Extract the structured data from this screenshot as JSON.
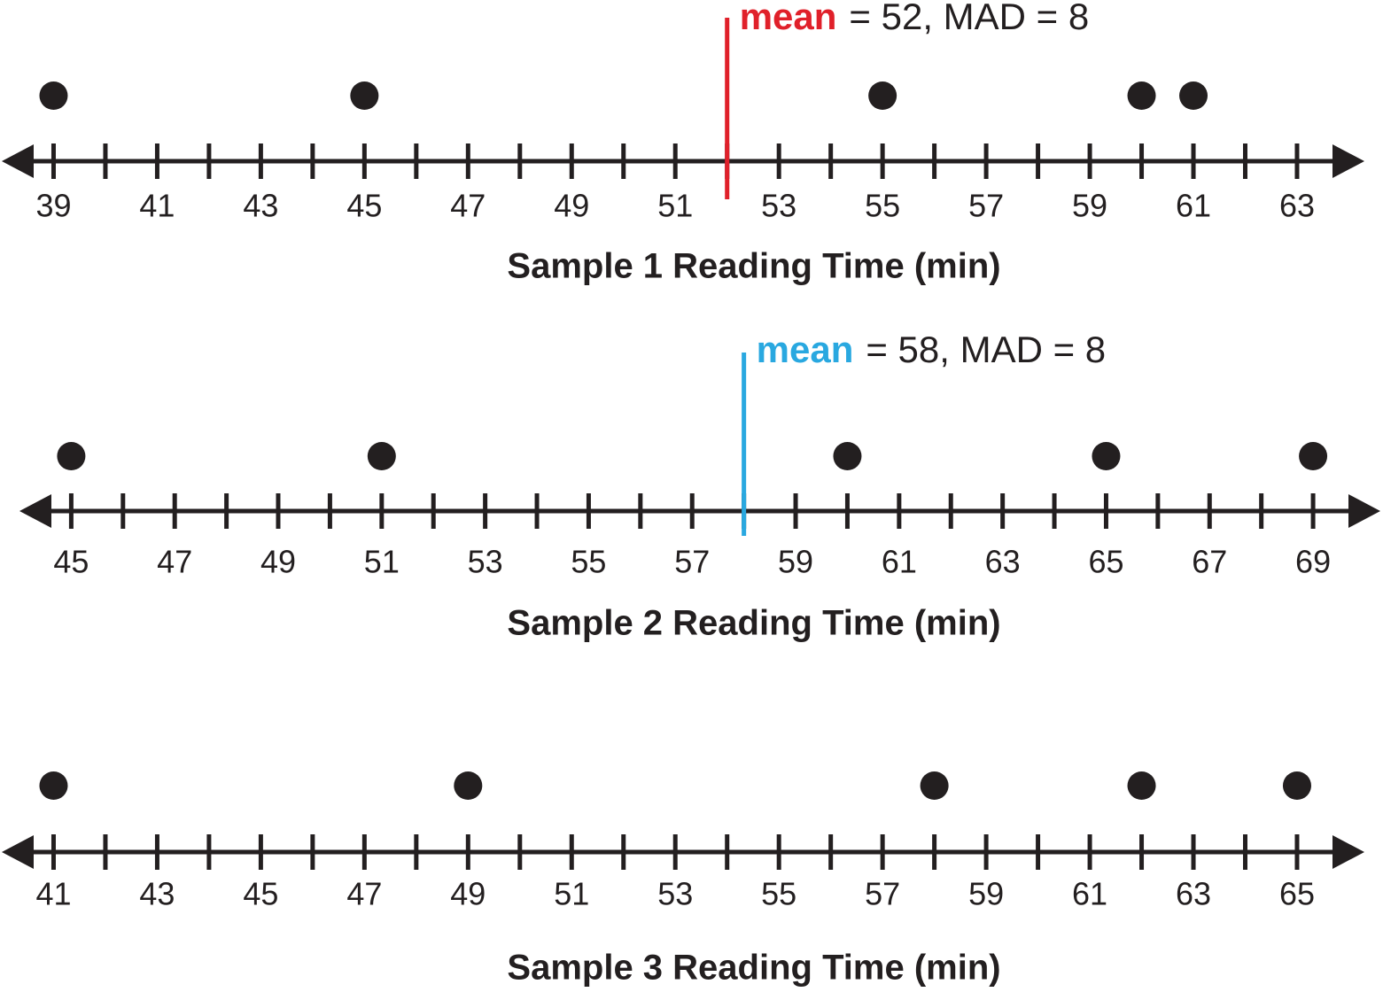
{
  "chart_data": [
    {
      "type": "dot",
      "title": "Sample 1 Reading Time (min)",
      "values": [
        39,
        45,
        55,
        60,
        61
      ],
      "color": "#231f20",
      "xlim": [
        38,
        64.3
      ],
      "xticks": [
        39,
        41,
        43,
        45,
        47,
        49,
        51,
        53,
        55,
        57,
        59,
        61,
        63
      ],
      "xminor": [
        40,
        42,
        44,
        46,
        48,
        50,
        52,
        54,
        56,
        58,
        60,
        62
      ],
      "mean": {
        "value": 52,
        "label": "mean",
        "text": "= 52, MAD = 8",
        "color": "#e0202a"
      }
    },
    {
      "type": "dot",
      "title": "Sample 2 Reading Time (min)",
      "values": [
        45,
        51,
        60,
        65,
        69
      ],
      "color": "#231f20",
      "xlim": [
        44,
        70.3
      ],
      "xticks": [
        45,
        47,
        49,
        51,
        53,
        55,
        57,
        59,
        61,
        63,
        65,
        67,
        69
      ],
      "xminor": [
        46,
        48,
        50,
        52,
        54,
        56,
        58,
        60,
        62,
        64,
        66,
        68
      ],
      "mean": {
        "value": 58,
        "label": "mean",
        "text": "= 58, MAD = 8",
        "color": "#29a8e0"
      }
    },
    {
      "type": "dot",
      "title": "Sample 3 Reading Time (min)",
      "values": [
        41,
        49,
        58,
        62,
        65
      ],
      "color": "#231f20",
      "xlim": [
        40,
        66.3
      ],
      "xticks": [
        41,
        43,
        45,
        47,
        49,
        51,
        53,
        55,
        57,
        59,
        61,
        63,
        65
      ],
      "xminor": [
        42,
        44,
        46,
        48,
        50,
        52,
        54,
        56,
        58,
        60,
        62,
        64
      ]
    }
  ]
}
